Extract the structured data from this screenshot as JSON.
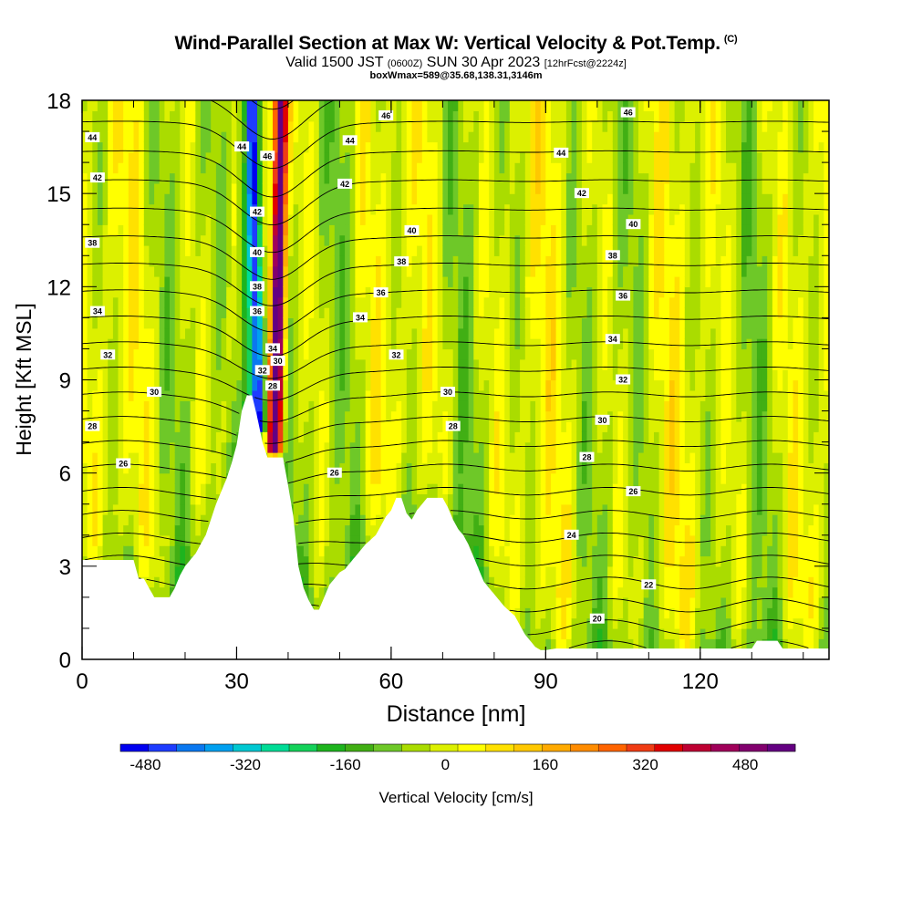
{
  "header": {
    "title": "Wind-Parallel Section at Max W: Vertical Velocity & Pot.Temp.",
    "copyright": "(C)",
    "subtitle_a": "Valid 1500 JST",
    "subtitle_b": "(0600Z)",
    "subtitle_c": "SUN 30 Apr 2023",
    "subtitle_d": "[12hrFcst@2224z]",
    "subsub": "boxWmax=589@35.68,138.31,3146m"
  },
  "colorbar": {
    "label": "Vertical Velocity [cm/s]",
    "tick_labels": [
      "-480",
      "-320",
      "-160",
      "0",
      "160",
      "320",
      "480"
    ],
    "tick_values": [
      -480,
      -320,
      -160,
      0,
      160,
      320,
      480
    ],
    "min": -520,
    "max": 560,
    "colors": [
      "#0000f0",
      "#1e3cff",
      "#0a78f0",
      "#00a0f0",
      "#00c8d2",
      "#00dc96",
      "#14d25a",
      "#1eb41e",
      "#41af14",
      "#6ec828",
      "#aadc00",
      "#dcf000",
      "#ffff00",
      "#ffe100",
      "#ffc800",
      "#ffaa00",
      "#ff8c00",
      "#ff6400",
      "#f03c14",
      "#e10000",
      "#be0032",
      "#a0005a",
      "#82006e",
      "#640082"
    ]
  },
  "chart_data": {
    "type": "heatmap",
    "title": "Wind-Parallel Section at Max W: Vertical Velocity & Pot.Temp.",
    "xlabel": "Distance [nm]",
    "ylabel": "Height [Kft MSL]",
    "xlim": [
      0,
      145
    ],
    "ylim": [
      0,
      18
    ],
    "x_ticks": [
      0,
      30,
      60,
      90,
      120
    ],
    "y_ticks": [
      0,
      3,
      6,
      9,
      12,
      15,
      18
    ],
    "fill_variable": "Vertical Velocity [cm/s]",
    "contour_variable": "Potential Temperature [C]",
    "max_updraft": {
      "value": 589,
      "units": "cm/s",
      "x": 38,
      "y_min": 6.5,
      "y_max": 18
    },
    "max_downdraft": {
      "value": -470,
      "units": "cm/s",
      "x": 34,
      "y_min": 7.5,
      "y_max": 18
    },
    "terrain": [
      [
        0,
        3.2
      ],
      [
        10,
        3.2
      ],
      [
        11,
        2.6
      ],
      [
        12,
        2.6
      ],
      [
        13,
        2.3
      ],
      [
        14,
        2.0
      ],
      [
        17,
        2.0
      ],
      [
        18,
        2.3
      ],
      [
        19,
        2.7
      ],
      [
        20,
        3.0
      ],
      [
        22,
        3.4
      ],
      [
        24,
        4.0
      ],
      [
        25,
        4.5
      ],
      [
        26,
        5.0
      ],
      [
        28,
        5.8
      ],
      [
        29,
        6.3
      ],
      [
        30,
        6.9
      ],
      [
        31,
        8.0
      ],
      [
        32,
        8.5
      ],
      [
        33,
        8.5
      ],
      [
        34,
        7.8
      ],
      [
        35,
        7.0
      ],
      [
        36,
        6.5
      ],
      [
        37,
        6.5
      ],
      [
        39,
        6.5
      ],
      [
        40,
        5.6
      ],
      [
        41,
        4.6
      ],
      [
        42,
        3.0
      ],
      [
        43,
        2.3
      ],
      [
        44,
        1.9
      ],
      [
        45,
        1.6
      ],
      [
        46,
        1.6
      ],
      [
        47,
        2.0
      ],
      [
        48,
        2.4
      ],
      [
        50,
        2.8
      ],
      [
        51,
        2.9
      ],
      [
        52,
        3.1
      ],
      [
        55,
        3.7
      ],
      [
        57,
        4.0
      ],
      [
        58,
        4.3
      ],
      [
        59,
        4.6
      ],
      [
        60,
        4.8
      ],
      [
        61,
        5.2
      ],
      [
        62,
        5.2
      ],
      [
        63,
        4.7
      ],
      [
        64,
        4.5
      ],
      [
        65,
        4.8
      ],
      [
        66,
        5.0
      ],
      [
        67,
        5.2
      ],
      [
        70,
        5.2
      ],
      [
        71,
        4.9
      ],
      [
        72,
        4.5
      ],
      [
        73,
        4.2
      ],
      [
        74,
        4.0
      ],
      [
        75,
        3.7
      ],
      [
        76,
        3.3
      ],
      [
        77,
        2.9
      ],
      [
        78,
        2.5
      ],
      [
        80,
        2.1
      ],
      [
        81,
        1.9
      ],
      [
        82,
        1.7
      ],
      [
        84,
        1.4
      ],
      [
        85,
        1.1
      ],
      [
        86,
        0.8
      ],
      [
        87,
        0.6
      ],
      [
        88,
        0.4
      ],
      [
        89,
        0.3
      ],
      [
        90,
        0.3
      ],
      [
        92,
        0.35
      ],
      [
        100,
        0.35
      ],
      [
        110,
        0.35
      ],
      [
        130,
        0.35
      ],
      [
        131,
        0.6
      ],
      [
        135,
        0.6
      ],
      [
        136,
        0.35
      ],
      [
        145,
        0.35
      ]
    ],
    "contour_levels": [
      {
        "value": 20,
        "label": "20",
        "label_pos": [
          100,
          1.3
        ]
      },
      {
        "value": 22,
        "label": "22",
        "label_pos": [
          110,
          2.4
        ]
      },
      {
        "value": 24,
        "label": "24",
        "label_pos": [
          95,
          4.0
        ]
      },
      {
        "value": 26,
        "label": "26",
        "label_pos": [
          8,
          6.3
        ]
      },
      {
        "value": 26,
        "label": "26",
        "label_pos": [
          49,
          6.0
        ]
      },
      {
        "value": 26,
        "label": "26",
        "label_pos": [
          107,
          5.4
        ]
      },
      {
        "value": 28,
        "label": "28",
        "label_pos": [
          2,
          7.5
        ]
      },
      {
        "value": 28,
        "label": "28",
        "label_pos": [
          37,
          8.8
        ]
      },
      {
        "value": 28,
        "label": "28",
        "label_pos": [
          72,
          7.5
        ]
      },
      {
        "value": 28,
        "label": "28",
        "label_pos": [
          98,
          6.5
        ]
      },
      {
        "value": 30,
        "label": "30",
        "label_pos": [
          14,
          8.6
        ]
      },
      {
        "value": 30,
        "label": "30",
        "label_pos": [
          38,
          9.6
        ]
      },
      {
        "value": 30,
        "label": "30",
        "label_pos": [
          71,
          8.6
        ]
      },
      {
        "value": 30,
        "label": "30",
        "label_pos": [
          101,
          7.7
        ]
      },
      {
        "value": 32,
        "label": "32",
        "label_pos": [
          5,
          9.8
        ]
      },
      {
        "value": 32,
        "label": "32",
        "label_pos": [
          35,
          9.3
        ]
      },
      {
        "value": 32,
        "label": "32",
        "label_pos": [
          61,
          9.8
        ]
      },
      {
        "value": 32,
        "label": "32",
        "label_pos": [
          105,
          9.0
        ]
      },
      {
        "value": 34,
        "label": "34",
        "label_pos": [
          3,
          11.2
        ]
      },
      {
        "value": 34,
        "label": "34",
        "label_pos": [
          37,
          10.0
        ]
      },
      {
        "value": 34,
        "label": "34",
        "label_pos": [
          54,
          11.0
        ]
      },
      {
        "value": 34,
        "label": "34",
        "label_pos": [
          103,
          10.3
        ]
      },
      {
        "value": 36,
        "label": "36",
        "label_pos": [
          34,
          11.2
        ]
      },
      {
        "value": 36,
        "label": "36",
        "label_pos": [
          58,
          11.8
        ]
      },
      {
        "value": 36,
        "label": "36",
        "label_pos": [
          105,
          11.7
        ]
      },
      {
        "value": 38,
        "label": "38",
        "label_pos": [
          2,
          13.4
        ]
      },
      {
        "value": 38,
        "label": "38",
        "label_pos": [
          34,
          12.0
        ]
      },
      {
        "value": 38,
        "label": "38",
        "label_pos": [
          62,
          12.8
        ]
      },
      {
        "value": 38,
        "label": "38",
        "label_pos": [
          103,
          13.0
        ]
      },
      {
        "value": 40,
        "label": "40",
        "label_pos": [
          34,
          13.1
        ]
      },
      {
        "value": 40,
        "label": "40",
        "label_pos": [
          64,
          13.8
        ]
      },
      {
        "value": 40,
        "label": "40",
        "label_pos": [
          107,
          14.0
        ]
      },
      {
        "value": 42,
        "label": "42",
        "label_pos": [
          3,
          15.5
        ]
      },
      {
        "value": 42,
        "label": "42",
        "label_pos": [
          34,
          14.4
        ]
      },
      {
        "value": 42,
        "label": "42",
        "label_pos": [
          51,
          15.3
        ]
      },
      {
        "value": 42,
        "label": "42",
        "label_pos": [
          97,
          15.0
        ]
      },
      {
        "value": 44,
        "label": "44",
        "label_pos": [
          2,
          16.8
        ]
      },
      {
        "value": 44,
        "label": "44",
        "label_pos": [
          31,
          16.5
        ]
      },
      {
        "value": 44,
        "label": "44",
        "label_pos": [
          52,
          16.7
        ]
      },
      {
        "value": 44,
        "label": "44",
        "label_pos": [
          93,
          16.3
        ]
      },
      {
        "value": 46,
        "label": "46",
        "label_pos": [
          36,
          16.2
        ]
      },
      {
        "value": 46,
        "label": "46",
        "label_pos": [
          59,
          17.5
        ]
      },
      {
        "value": 46,
        "label": "46",
        "label_pos": [
          106,
          17.6
        ]
      }
    ]
  }
}
